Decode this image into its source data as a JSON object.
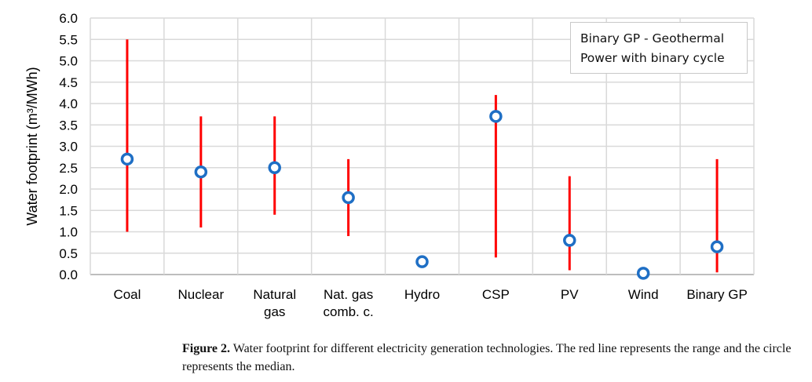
{
  "chart_data": {
    "type": "range-median",
    "ylabel": "Water footprint (m³/MWh)",
    "ylim": [
      0,
      6.0
    ],
    "ytick_step": 0.5,
    "yticks": [
      "0.0",
      "0.5",
      "1.0",
      "1.5",
      "2.0",
      "2.5",
      "3.0",
      "3.5",
      "4.0",
      "4.5",
      "5.0",
      "5.5",
      "6.0"
    ],
    "grid": true,
    "categories": [
      [
        "Coal"
      ],
      [
        "Nuclear"
      ],
      [
        "Natural",
        "gas"
      ],
      [
        "Nat. gas",
        "comb. c."
      ],
      [
        "Hydro"
      ],
      [
        "CSP"
      ],
      [
        "PV"
      ],
      [
        "Wind"
      ],
      [
        "Binary GP"
      ]
    ],
    "series": [
      {
        "role": "range",
        "color": "#ff0000",
        "min": [
          1.0,
          1.1,
          1.4,
          0.9,
          null,
          0.4,
          0.1,
          null,
          0.05
        ],
        "max": [
          5.5,
          3.7,
          3.7,
          2.7,
          null,
          4.2,
          2.3,
          null,
          2.7
        ]
      },
      {
        "role": "median",
        "color": "#1f6fc5",
        "values": [
          2.7,
          2.4,
          2.5,
          1.8,
          0.3,
          3.7,
          0.8,
          0.03,
          0.65
        ]
      }
    ],
    "legend": {
      "text_line1": "Binary GP - Geothermal",
      "text_line2": "Power with binary cycle",
      "placement": "top-right"
    }
  },
  "caption": {
    "label": "Figure 2.",
    "text": " Water footprint for different electricity generation technologies. The red line represents the range and the circle represents the median."
  }
}
